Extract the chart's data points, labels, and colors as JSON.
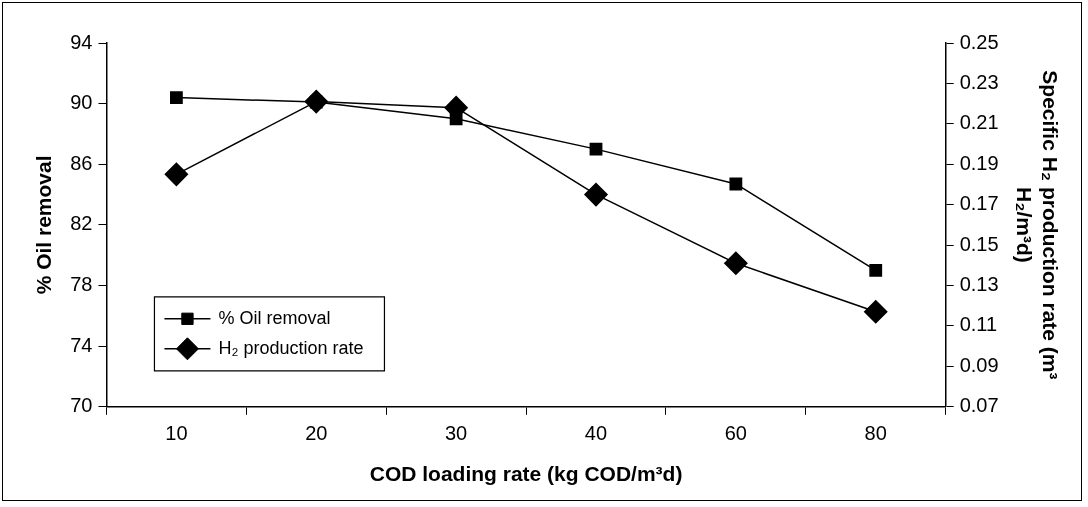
{
  "chart_data": {
    "type": "line",
    "xlabel": "COD loading rate (kg COD/m³d)",
    "ylabel": "% Oil removal",
    "y2label": "Specific H₂ production rate (m³ H₂/m³d)",
    "categories": [
      "10",
      "20",
      "30",
      "40",
      "60",
      "80"
    ],
    "series": [
      {
        "name": "% Oil removal",
        "color": "#000000",
        "marker": "square",
        "values": [
          90.4,
          90.1,
          89.0,
          87.0,
          84.7,
          79.0
        ]
      },
      {
        "name": "H₂ production rate",
        "color": "#000000",
        "marker": "diamond",
        "axis": "y2",
        "values": [
          0.185,
          0.221,
          0.218,
          0.175,
          0.141,
          0.117
        ]
      }
    ],
    "ylim": [
      70,
      94
    ],
    "yticks": [
      70,
      74,
      78,
      82,
      86,
      90,
      94
    ],
    "y2lim": [
      0.07,
      0.25
    ],
    "y2ticks": [
      0.07,
      0.09,
      0.11,
      0.13,
      0.15,
      0.17,
      0.19,
      0.21,
      0.23,
      0.25
    ],
    "legend": "bottom left",
    "grid": false,
    "line_style": "solid"
  }
}
